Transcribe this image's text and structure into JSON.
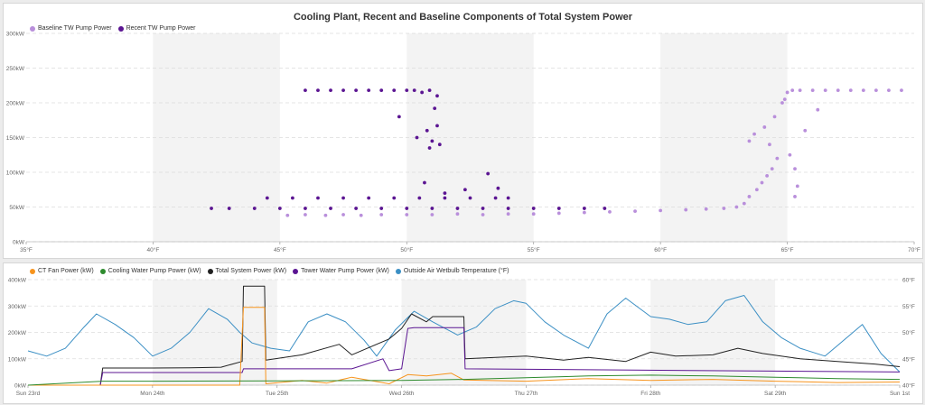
{
  "chart_data": [
    {
      "type": "scatter",
      "title": "Cooling Plant, Recent and Baseline Components of Total System Power",
      "legend": [
        {
          "name": "Baseline TW Pump Power",
          "color": "#b98fdb"
        },
        {
          "name": "Recent TW Pump Power",
          "color": "#5b1592"
        }
      ],
      "legend_position": "top-left",
      "x_ticks": [
        "35°F",
        "40°F",
        "45°F",
        "50°F",
        "55°F",
        "60°F",
        "65°F",
        "70°F"
      ],
      "y_ticks": [
        "0kW",
        "50kW",
        "100kW",
        "150kW",
        "200kW",
        "250kW",
        "300kW"
      ],
      "xlim": [
        35,
        70
      ],
      "ylim": [
        0,
        300
      ],
      "shaded_bands": [
        [
          40,
          45
        ],
        [
          50,
          55
        ],
        [
          60,
          65
        ]
      ],
      "series": [
        {
          "name": "Baseline TW Pump Power",
          "points": [
            [
              45.3,
              38
            ],
            [
              46,
              39
            ],
            [
              46.8,
              38
            ],
            [
              47.5,
              39
            ],
            [
              48.2,
              38
            ],
            [
              49,
              39
            ],
            [
              50,
              39
            ],
            [
              51,
              39
            ],
            [
              52,
              40
            ],
            [
              53,
              39
            ],
            [
              54,
              40
            ],
            [
              55,
              40
            ],
            [
              56,
              41
            ],
            [
              57,
              42
            ],
            [
              58,
              43
            ],
            [
              59,
              44
            ],
            [
              60,
              45
            ],
            [
              61,
              46
            ],
            [
              61.8,
              47
            ],
            [
              62.5,
              48
            ],
            [
              63,
              50
            ],
            [
              63.3,
              55
            ],
            [
              63.5,
              65
            ],
            [
              63.8,
              75
            ],
            [
              64,
              85
            ],
            [
              64.2,
              95
            ],
            [
              64.4,
              105
            ],
            [
              64.6,
              120
            ],
            [
              64.3,
              140
            ],
            [
              63.7,
              155
            ],
            [
              63.5,
              145
            ],
            [
              64.1,
              165
            ],
            [
              64.5,
              180
            ],
            [
              64.8,
              200
            ],
            [
              64.9,
              205
            ],
            [
              65,
              215
            ],
            [
              65.2,
              218
            ],
            [
              65.5,
              218
            ],
            [
              66,
              218
            ],
            [
              66.5,
              218
            ],
            [
              67,
              218
            ],
            [
              67.5,
              218
            ],
            [
              68,
              218
            ],
            [
              68.5,
              218
            ],
            [
              69,
              218
            ],
            [
              69.5,
              218
            ],
            [
              65.7,
              160
            ],
            [
              66.2,
              190
            ],
            [
              65.3,
              105
            ],
            [
              65.4,
              80
            ],
            [
              65.3,
              65
            ],
            [
              65.1,
              125
            ]
          ]
        },
        {
          "name": "Recent TW Pump Power",
          "points": [
            [
              42.3,
              48
            ],
            [
              43,
              48
            ],
            [
              44,
              48
            ],
            [
              45,
              48
            ],
            [
              46,
              48
            ],
            [
              47,
              48
            ],
            [
              48,
              48
            ],
            [
              49,
              48
            ],
            [
              50,
              48
            ],
            [
              51,
              48
            ],
            [
              52,
              48
            ],
            [
              53,
              48
            ],
            [
              54,
              48
            ],
            [
              55,
              48
            ],
            [
              56,
              48
            ],
            [
              57,
              48
            ],
            [
              57.8,
              48
            ],
            [
              44.5,
              63
            ],
            [
              45.5,
              63
            ],
            [
              46.5,
              63
            ],
            [
              47.5,
              63
            ],
            [
              48.5,
              63
            ],
            [
              49.5,
              63
            ],
            [
              50.5,
              63
            ],
            [
              51.5,
              63
            ],
            [
              52.5,
              63
            ],
            [
              53.5,
              63
            ],
            [
              54,
              63
            ],
            [
              46,
              218
            ],
            [
              46.5,
              218
            ],
            [
              47,
              218
            ],
            [
              47.5,
              218
            ],
            [
              48,
              218
            ],
            [
              48.5,
              218
            ],
            [
              49,
              218
            ],
            [
              49.5,
              218
            ],
            [
              50,
              218
            ],
            [
              50.3,
              218
            ],
            [
              50.6,
              215
            ],
            [
              50.9,
              218
            ],
            [
              51.2,
              210
            ],
            [
              49.7,
              180
            ],
            [
              50.4,
              150
            ],
            [
              50.8,
              160
            ],
            [
              51,
              145
            ],
            [
              51.2,
              167
            ],
            [
              50.9,
              135
            ],
            [
              51.3,
              140
            ],
            [
              51.1,
              192
            ],
            [
              50.7,
              85
            ],
            [
              51.5,
              70
            ],
            [
              52.3,
              75
            ],
            [
              53.2,
              98
            ],
            [
              53.6,
              77
            ]
          ]
        }
      ]
    },
    {
      "type": "line",
      "title": "",
      "legend": [
        {
          "name": "CT Fan Power (kW)",
          "color": "#f7941d"
        },
        {
          "name": "Cooling Water Pump Power (kW)",
          "color": "#2e8b2e"
        },
        {
          "name": "Total System Power (kW)",
          "color": "#222222"
        },
        {
          "name": "Tower Water Pump Power (kW)",
          "color": "#5b1592"
        },
        {
          "name": "Outside Air Wetbulb Temperature (°F)",
          "color": "#3b8fc4"
        }
      ],
      "legend_position": "top-left",
      "x_ticks": [
        "Sun 23rd",
        "Mon 24th",
        "Tue 25th",
        "Wed 26th",
        "Thu 27th",
        "Fri 28th",
        "Sat 29th",
        "Sun 1st"
      ],
      "y_ticks_left": [
        "0kW",
        "100kW",
        "200kW",
        "300kW",
        "400kW"
      ],
      "y_ticks_right": [
        "40°F",
        "45°F",
        "50°F",
        "55°F",
        "60°F"
      ],
      "xlim_days": [
        0,
        7
      ],
      "ylim_left": [
        0,
        400
      ],
      "ylim_right": [
        40,
        60
      ],
      "shaded_bands_days": [
        [
          1,
          2
        ],
        [
          3,
          4
        ],
        [
          5,
          6
        ]
      ],
      "series": [
        {
          "name": "Outside Air Wetbulb Temperature (°F)",
          "axis": "right",
          "x": [
            0,
            0.15,
            0.3,
            0.45,
            0.55,
            0.7,
            0.85,
            1,
            1.15,
            1.3,
            1.45,
            1.6,
            1.7,
            1.8,
            1.95,
            2.1,
            2.25,
            2.4,
            2.55,
            2.7,
            2.8,
            2.95,
            3.1,
            3.25,
            3.45,
            3.6,
            3.75,
            3.9,
            4,
            4.15,
            4.3,
            4.5,
            4.65,
            4.8,
            5,
            5.15,
            5.3,
            5.45,
            5.6,
            5.75,
            5.9,
            6.05,
            6.2,
            6.4,
            6.55,
            6.7,
            6.85,
            7
          ],
          "values": [
            46.5,
            45.5,
            47,
            51,
            53.5,
            51.5,
            49,
            45.5,
            47,
            50,
            54.5,
            52.5,
            50,
            48,
            47,
            46.5,
            52,
            53.5,
            52,
            48.5,
            45.5,
            50.5,
            54,
            52,
            49.5,
            51,
            54.5,
            56,
            55.5,
            52,
            49.5,
            47,
            53.5,
            56.5,
            53,
            52.5,
            51.5,
            52,
            56,
            57,
            52,
            49,
            47,
            45.5,
            48.5,
            51.5,
            46,
            42.5
          ]
        },
        {
          "name": "Total System Power (kW)",
          "axis": "left",
          "x": [
            0,
            0.58,
            0.6,
            1,
            1.3,
            1.55,
            1.72,
            1.73,
            1.9,
            1.91,
            2.2,
            2.5,
            2.6,
            2.9,
            3,
            3.08,
            3.2,
            3.25,
            3.5,
            3.51,
            4,
            4.3,
            4.5,
            4.8,
            5,
            5.2,
            5.5,
            5.7,
            5.9,
            6.2,
            6.5,
            6.8,
            7
          ],
          "values": [
            0,
            0,
            65,
            65,
            66,
            68,
            90,
            375,
            375,
            95,
            115,
            155,
            115,
            175,
            215,
            270,
            240,
            260,
            260,
            100,
            110,
            95,
            105,
            90,
            125,
            110,
            115,
            140,
            120,
            100,
            90,
            80,
            70
          ]
        },
        {
          "name": "Tower Water Pump Power (kW)",
          "axis": "left",
          "x": [
            0,
            0.58,
            0.6,
            1.72,
            1.73,
            2.5,
            2.6,
            2.85,
            2.9,
            3,
            3.05,
            3.1,
            3.5,
            3.51,
            7
          ],
          "values": [
            0,
            0,
            48,
            48,
            62,
            62,
            62,
            100,
            55,
            62,
            215,
            218,
            218,
            62,
            50
          ]
        },
        {
          "name": "CT Fan Power (kW)",
          "axis": "left",
          "x": [
            0,
            1.7,
            1.73,
            1.9,
            1.91,
            2.2,
            2.4,
            2.6,
            2.9,
            3.05,
            3.2,
            3.4,
            3.5,
            4,
            4.5,
            5,
            5.5,
            6,
            6.5,
            7
          ],
          "values": [
            0,
            0,
            295,
            295,
            5,
            18,
            8,
            30,
            5,
            40,
            35,
            45,
            20,
            15,
            25,
            18,
            22,
            15,
            10,
            12
          ]
        },
        {
          "name": "Cooling Water Pump Power (kW)",
          "axis": "left",
          "x": [
            0,
            0.6,
            1,
            2,
            3,
            3.5,
            4,
            4.5,
            5,
            5.5,
            6,
            6.5,
            7
          ],
          "values": [
            0,
            15,
            15,
            16,
            18,
            22,
            28,
            35,
            38,
            35,
            30,
            25,
            22
          ]
        }
      ]
    }
  ]
}
